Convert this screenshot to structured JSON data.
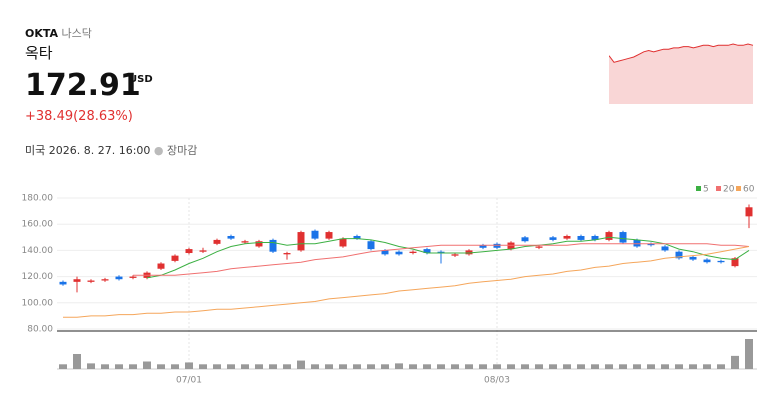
{
  "header": {
    "ticker": "OKTA",
    "exchange": "나스닥",
    "name": "옥타",
    "price": "172.91",
    "currency": "USD",
    "change": "+38.49(28.63%)",
    "datetime": "미국 2026. 8. 27. 16:00",
    "status": "장마감"
  },
  "sparkline": {
    "color": "#e03030",
    "ylim": [
      130,
      176
    ],
    "values": [
      167,
      162,
      163,
      164,
      165,
      166,
      168,
      170,
      171,
      170,
      171,
      172,
      172,
      173,
      173,
      174,
      174,
      173,
      174,
      175,
      175,
      174,
      175,
      175,
      175,
      176,
      175,
      175,
      176,
      175
    ]
  },
  "chart_data": {
    "type": "candlestick",
    "up_color": "#e03030",
    "down_color": "#1a73e8",
    "volume_color": "#999999",
    "grid": true,
    "categories": [
      null,
      null,
      null,
      null,
      null,
      null,
      null,
      null,
      null,
      "07/01",
      null,
      null,
      null,
      null,
      null,
      null,
      null,
      null,
      null,
      null,
      null,
      null,
      null,
      null,
      null,
      null,
      null,
      null,
      null,
      null,
      null,
      "08/03",
      null,
      null,
      null,
      null,
      null,
      null,
      null,
      null,
      null,
      null,
      null,
      null,
      null,
      null,
      null,
      null,
      null,
      null
    ],
    "open": [
      116,
      116,
      116,
      117,
      120,
      119,
      119,
      126,
      132,
      138,
      139,
      145,
      151,
      146,
      143,
      148,
      137,
      140,
      155,
      149,
      143,
      151,
      147,
      140,
      139,
      138,
      141,
      139,
      136,
      137,
      144,
      145,
      141,
      150,
      142,
      150,
      149,
      151,
      151,
      148,
      154,
      148,
      145,
      143,
      139,
      135,
      133,
      132,
      128,
      166
    ],
    "high": [
      117,
      120,
      118,
      119,
      121,
      121,
      124,
      131,
      137,
      142,
      142,
      149,
      152,
      148,
      148,
      149,
      139,
      155,
      156,
      155,
      150,
      152,
      148,
      141,
      140,
      140,
      142,
      140,
      138,
      141,
      145,
      146,
      147,
      151,
      144,
      151,
      152,
      152,
      152,
      155,
      155,
      149,
      146,
      144,
      140,
      136,
      134,
      133,
      135,
      175
    ],
    "low": [
      113,
      108,
      115,
      116,
      117,
      118,
      118,
      125,
      131,
      137,
      138,
      144,
      148,
      145,
      142,
      138,
      133,
      139,
      148,
      148,
      142,
      148,
      140,
      136,
      136,
      137,
      137,
      130,
      135,
      136,
      141,
      141,
      140,
      146,
      141,
      147,
      148,
      147,
      147,
      147,
      145,
      142,
      143,
      139,
      133,
      132,
      130,
      130,
      127,
      157
    ],
    "close": [
      114,
      118,
      117,
      118,
      118,
      120,
      123,
      130,
      136,
      141,
      140,
      148,
      149,
      147,
      147,
      139,
      138,
      154,
      149,
      154,
      149,
      149,
      141,
      137,
      137,
      139,
      138,
      138,
      137,
      140,
      142,
      142,
      146,
      147,
      143,
      148,
      151,
      148,
      148,
      154,
      146,
      143,
      144,
      140,
      134,
      133,
      131,
      131,
      134,
      172.91
    ],
    "volume": [
      5,
      16,
      6,
      5,
      5,
      5,
      8,
      5,
      5,
      7,
      5,
      5,
      5,
      5,
      5,
      5,
      5,
      9,
      5,
      5,
      5,
      5,
      5,
      5,
      6,
      5,
      5,
      5,
      5,
      5,
      5,
      5,
      5,
      5,
      5,
      5,
      5,
      5,
      5,
      5,
      5,
      5,
      5,
      5,
      5,
      5,
      5,
      5,
      14,
      32
    ],
    "volume_ylim": [
      0,
      32
    ],
    "series": [
      {
        "name": "5",
        "color": "#3cb043",
        "values": [
          null,
          null,
          null,
          null,
          null,
          null,
          119,
          121,
          125,
          130,
          134,
          139,
          143,
          145,
          146,
          146,
          144,
          145,
          145,
          147,
          149,
          149,
          148,
          146,
          143,
          141,
          138,
          138,
          138,
          138,
          139,
          140,
          141,
          143,
          144,
          145,
          147,
          147,
          148,
          150,
          149,
          148,
          147,
          145,
          141,
          139,
          136,
          134,
          133,
          140
        ]
      },
      {
        "name": "20",
        "color": "#f07070",
        "values": [
          null,
          null,
          null,
          null,
          null,
          121,
          121,
          121,
          121,
          122,
          123,
          124,
          126,
          127,
          128,
          129,
          130,
          131,
          133,
          134,
          135,
          137,
          139,
          140,
          141,
          142,
          143,
          144,
          144,
          144,
          144,
          144,
          144,
          144,
          144,
          144,
          144,
          145,
          145,
          145,
          145,
          145,
          145,
          145,
          145,
          145,
          145,
          144,
          144,
          143
        ]
      },
      {
        "name": "60",
        "color": "#f5a65b",
        "values": [
          89,
          89,
          90,
          90,
          91,
          91,
          92,
          92,
          93,
          93,
          94,
          95,
          95,
          96,
          97,
          98,
          99,
          100,
          101,
          103,
          104,
          105,
          106,
          107,
          109,
          110,
          111,
          112,
          113,
          115,
          116,
          117,
          118,
          120,
          121,
          122,
          124,
          125,
          127,
          128,
          130,
          131,
          132,
          134,
          135,
          136,
          137,
          139,
          141,
          143
        ]
      }
    ],
    "ylim": [
      80,
      180
    ],
    "yticks": [
      {
        "value": 80,
        "label": "80.00"
      },
      {
        "value": 100,
        "label": "100.00"
      },
      {
        "value": 120,
        "label": "120.00"
      },
      {
        "value": 140,
        "label": "140.00"
      },
      {
        "value": 160,
        "label": "160.00"
      },
      {
        "value": 180,
        "label": "180.00"
      }
    ]
  }
}
